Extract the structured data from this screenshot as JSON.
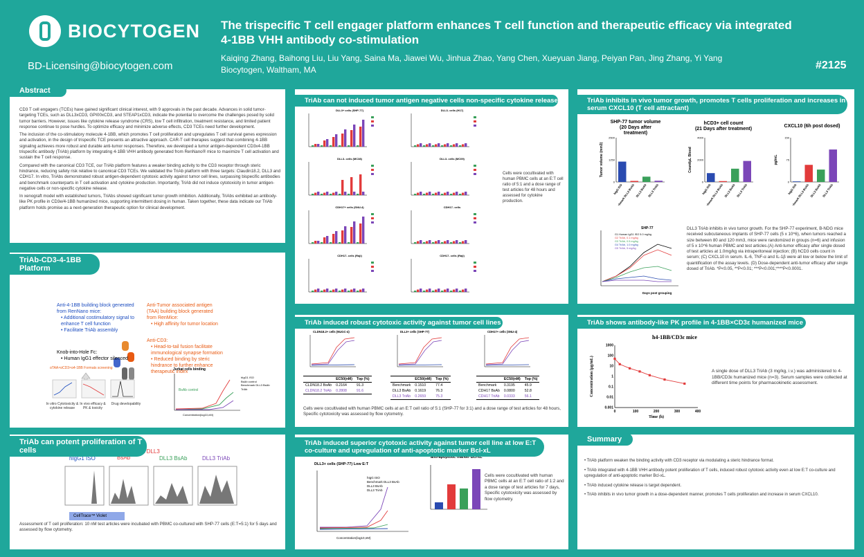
{
  "header": {
    "brand": "BIOCYTOGEN",
    "email": "BD-Licensing@biocytogen.com",
    "title": "The trispecific T cell engager platform enhances T cell function and therapeutic efficacy via integrated 4-1BB VHH antibody co-stimulation",
    "authors": "Kaiqing Zhang, Baihong Liu, Liu Yang, Saina Ma, Jiawei Wu, Jinhua Zhao, Yang Chen, Xueyuan Jiang, Peiyan Pan, Jing Zhang, Yi Yang",
    "affiliation": "Biocytogen, Waltham, MA",
    "poster_no": "#2125"
  },
  "abstract": {
    "tag": "Abstract",
    "p1": "CD3 T cell engagers (TCEs) have gained significant clinical interest, with 9 approvals in the past decade. Advances in solid tumor-targeting TCEs, such as DLL3xCD3, GPI00xCD3, and STEAP1xCD3, indicate the potential to overcome the challenges posed by solid tumor barriers. However, issues like cytokine release syndrome (CRS), low T cell infiltration, treatment resistance, and limited patient response continue to pose hurdles. To optimize efficacy and minimize adverse effects, CD3 TCEs need further development.",
    "p2": "The inclusion of the co-stimulatory molecule 4-1BB, which promotes T cell proliferation and upregulates T cell survival genes expression and activation, in the design of trispecific TCE presents an attractive approach. CAR-T cell therapies suggest that combining 4-1BB signaling achieves more robust and durable anti-tumor responses. Therefore, we developed a tumor antigen-dependent CD3x4-1BB trispecific antibody (TriAb) platform by integrating 4-1BB VHH antibody generated from RenNano® mice to maximize T cell activation and sustain the T cell response.",
    "p3": "Compared with the canonical CD3 TCE, our TriAb platform features a weaker binding activity to the CD3 receptor through steric hindrance, reducing safety risk relative to canonical CD3 TCEs. We validated the TriAb platform with three targets: Claudin18.2, DLL3 and CDH17. In vitro, TriAbs demonstrated robust antigen-dependent cytotoxic activity against tumor cell lines, surpassing bispecific antibodies and benchmark counterparts in T cell activation and cytokine production. Importantly, TriAb did not induce cytotoxicity in tumor antigen-negative cells or non-specific cytokine release.",
    "p4": "In xenograft model with established tumors, TriAbs showed significant tumor growth inhibition. Additionally, TriAbs exhibited an antibody-like PK profile in CD3e/4-1BB humanized mice, supporting intermittent dosing in human. Taken together, these data indicate our TriAb platform holds promise as a next-generation therapeutic option for clinical development."
  },
  "platform": {
    "tag": "TriAb-CD3-4-1BB Platform",
    "left_head": "Anti-4-1BB building block generated from RenNano mice:",
    "left_b1": "Additional costimulatory signal to enhance T cell function",
    "left_b2": "Facilitate TriAb assembly",
    "right_head": "Anti-Tumor associated antigen (TAA) building block generated from RenMice:",
    "right_b1": "High affinity for tumor location",
    "cd3_head": "Anti-CD3:",
    "cd3_b1": "Head-to-tail fusion facilitate immunological synapse formation",
    "cd3_b2": "Reduced binding by steric hindrance to further enhance therapeutic index",
    "knob_head": "Knob-into-Hole Fc:",
    "knob_b1": "Human IgG1 effector silenced",
    "formats": "αTAA×αCD3×α4-1BB Formats screening",
    "step1": "In vitro Cytotoxicity & cytokine release",
    "step2": "In vivo efficacy & PK & toxicity",
    "step3": "Drug developability",
    "jurkat_title": "Jurkat cells binding",
    "bsab_control": "BsAb control",
    "jurkat_legend": [
      "hIgG1 ISO",
      "BsAb control",
      "Benchmark DLL3 BsAb",
      "TriAb"
    ],
    "jurkat_x": "Concentration(log10,nM)",
    "jurkat_y": "MFI"
  },
  "prolif": {
    "tag": "TriAb can potent proliferation of T cells",
    "labels": [
      "hIgG1 ISO",
      "Benchmark DLL3 BsAb",
      "DLL3 BsAb",
      "DLL3 TriAb"
    ],
    "marker": "CellTrace™ Violet",
    "caption": "Assessment of T cell proliferation: 10 nM test articles were incubated with PBMC co-cultured with SHP-77 cells (E:T=5:1) for 5 days and assessed by flow cytometry."
  },
  "cytokine": {
    "tag": "TriAb can not induced tumor antigen negative cells non-specific cytokine release",
    "panels": [
      "DLL3+ cells (SHP-77)",
      "DLL3- cells (H17)",
      "DLL3- cells (MC38)",
      "DLL3- cells (MC09)",
      "CDH17+ cells (SNU-4)",
      "CDH17- cells",
      "CDH17- cells (Raji)",
      "CDH17- cells (Raji)"
    ],
    "caption": "Cells were cocultivated with human PBMC cells at an E:T cell ratio of 5:1 and a dose range of test articles for 48 hours and assessed for cytokine production."
  },
  "cytotox": {
    "tag": "TriAb induced robust cytotoxic activity against tumor cell lines",
    "panels": [
      "CLDN18.2+ cells (NUGC-4)",
      "DLL3+ cells (SHP-77)",
      "CDH17+ cells (SNU-4)"
    ],
    "col_ec50": "EC50(nM)",
    "col_top": "Top (%)",
    "table1": [
      [
        "CLDN18.2 BsAb",
        "0.2164",
        "91.3"
      ],
      [
        "CLDN18.2 TriAb",
        "0.2808",
        "91.6"
      ]
    ],
    "table2": [
      [
        "Benchmark",
        "0.1510",
        "77.4"
      ],
      [
        "DLL3 BsAb",
        "0.1619",
        "76.3"
      ],
      [
        "DLL3 TriAb",
        "0.2659",
        "75.3"
      ]
    ],
    "table3": [
      [
        "Benchmark",
        "0.3195",
        "45.9"
      ],
      [
        "CDH17 BsAb",
        "0.0800",
        "52.8"
      ],
      [
        "CDH17 TriAb",
        "0.0333",
        "56.1"
      ]
    ],
    "caption": "Cells were cocultivated with human PBMC cells at an E:T cell ratio of 5:1 (SHP-77 for 3:1) and a dose range of test articles for 48 hours, Specific cytotoxicity was assessed by flow cytometry."
  },
  "lowet": {
    "tag": "TriAb induced superior cytotoxic activity against tumor cell line at low E:T co-culture and upregulation of anti-apoptotic marker Bcl-xL",
    "chart1": "DLL3+ cells (SHP-77) Low E:T",
    "chart2": "anti-apoptotic marker Bcl-xL",
    "legend": [
      "hIgG ISO",
      "Benchmark DLL3 BsAb",
      "DLL3 BsAb",
      "DLL3 TriAb"
    ],
    "xlabel": "Concentration(log10,nM)",
    "ylabel": "Cytotoxicity(%)",
    "mfi": "MFI",
    "caption": "Cells were cocultivated with human PBMC cells at an E:T cell ratio of 1:2 and a dose range of test articles for 7 days, Specific cytotoxicity was assessed by flow cytometry."
  },
  "invivo": {
    "tag": "TriAb inhibits in vivo tumor growth, promotes T cells proliferation and increases in serum CXCL10 (T cell attractant)",
    "a_title": "SHP-77 tumor volume",
    "a_sub": "(20 Days after treatment)",
    "b_title": "hCD3+ cell count",
    "b_sub": "(21 Days after treatment)",
    "c_title": "CXCL10 (6h post dosed)",
    "a_y": "Tumor volume (mm3)",
    "b_y": "Count/μL Blood",
    "c_y": "pg/mL",
    "groups": [
      "hIgG ISO",
      "Benchmark DLL3 BsAb",
      "DLL3 BsAb",
      "DLL3 TriAb"
    ],
    "d_title": "SHP-77",
    "d_legend": [
      "G1 Human IgG1 ISO 5.0 mg/kg",
      "G2 TriAb, 0.1 mg/kg",
      "G3 TriAb, 0.5 mg/kg",
      "G4 TriAb, 1.0 mg/kg",
      "G5 TriAb, 5 mg/kg"
    ],
    "d_x": "Days post grouping",
    "d_y": "Tumor volume (mm3)",
    "caption": "DLL3 TriAb inhibits in vivo tumor growth. For the SHP-77 experiment, B-NDG mice received subcutaneous implants of SHP-77 cells (5 x 10^6), when tumors reached a size between 80 and 120 mm3, mice were randomized in groups (n=6) and infusion of 5 x 10^6 human PBMC and test articles.(A) Anti-tumor efficacy after single dosed of test articles at 1.0mg/kg via intraperitoneal injection; (B) hCD3 cells count in serum; (C) CXCL10 in serum. IL-6, TNF-α and IL-1β were all low or below the limit of quantification of the assay levels. (D) Dose-dependent anti-tumor efficacy after single dosed of TriAb. *P<0.05, **P<0.01; ***P<0.001;****P<0.0001."
  },
  "pk": {
    "tag": "TriAb shows antibody-like PK profile in 4-1BB×CD3ε humanized mice",
    "chart_title": "h4-1BB/CD3ε mice",
    "xlabel": "Time (h)",
    "ylabel": "Concentration (μg/mL)",
    "caption": "A single dose of DLL3 TriAb (3 mg/kg, i.v.) was administered to 4-1BB/CD3ε humanized mice (n=3). Serum samples were collected at different time points for pharmacokinetic assessment."
  },
  "summary": {
    "tag": "Summary",
    "items": [
      "TriAb platform weaken the binding activity with CD3 receptor via modulating a steric hindrance format.",
      "TriAb integrated with 4-1BB VHH antibody potent proliferation of T cells, induced robust cytotoxic activity even at low E:T co-culture and upregulation of anti-apoptotic marker Bcl-xL.",
      "TriAb induced cytokine release is target dependent.",
      "TriAb inhibits in vivo tumor growth in a dose-dependent manner, promotes T cells proliferation and increase in serum CXCL10."
    ]
  },
  "chart_data": [
    {
      "type": "bar",
      "title": "SHP-77 tumor volume",
      "categories": [
        "hIgG ISO",
        "Benchmark DLL3 BsAb",
        "DLL3 BsAb",
        "DLL3 TriAb"
      ],
      "values": [
        1150,
        60,
        300,
        70
      ],
      "ylabel": "Tumor volume (mm3)",
      "ylim": [
        0,
        2500
      ],
      "colors": [
        "#2a4bb0",
        "#e23b3b",
        "#3aa05a",
        "#7b46b8"
      ]
    },
    {
      "type": "bar",
      "title": "hCD3+ cell count",
      "categories": [
        "hIgG ISO",
        "Benchmark DLL3 BsAb",
        "DLL3 BsAb",
        "DLL3 TriAb"
      ],
      "values": [
        800,
        80,
        1200,
        1900
      ],
      "ylabel": "Count/μL Blood",
      "ylim": [
        0,
        4000
      ],
      "colors": [
        "#2a4bb0",
        "#e23b3b",
        "#3aa05a",
        "#7b46b8"
      ]
    },
    {
      "type": "bar",
      "title": "CXCL10 (6h post dosed)",
      "categories": [
        "hIgG ISO",
        "Benchmark DLL3 BsAb",
        "DLL3 BsAb",
        "DLL3 TriAb"
      ],
      "values": [
        2,
        58,
        42,
        110
      ],
      "ylabel": "pg/mL",
      "ylim": [
        0,
        150
      ],
      "colors": [
        "#2a4bb0",
        "#e23b3b",
        "#3aa05a",
        "#7b46b8"
      ]
    },
    {
      "type": "line",
      "title": "h4-1BB/CD3ε mice",
      "x": [
        0,
        24,
        72,
        120,
        168,
        240,
        336
      ],
      "series": [
        {
          "values": [
            50,
            15,
            6,
            3,
            1.3,
            0.5,
            0.2
          ]
        }
      ],
      "xlabel": "Time (h)",
      "ylabel": "Concentration (μg/mL)",
      "xlim": [
        0,
        400
      ],
      "yscale": "log"
    }
  ]
}
